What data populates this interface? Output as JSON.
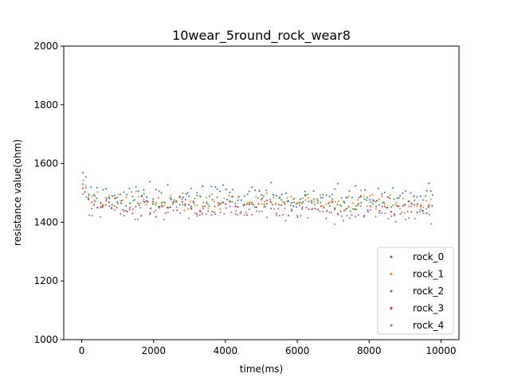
{
  "chart_data": {
    "type": "scatter",
    "title": "10wear_5round_rock_wear8",
    "xlabel": "time(ms)",
    "ylabel": "resistance value(ohm)",
    "xlim": [
      -500,
      10500
    ],
    "ylim": [
      1000,
      2000
    ],
    "x_ticks": [
      0,
      2000,
      4000,
      6000,
      8000,
      10000
    ],
    "y_ticks": [
      1000,
      1200,
      1400,
      1600,
      1800,
      2000
    ],
    "grid": false,
    "legend_position": "lower-right",
    "x_range": [
      0,
      9800
    ],
    "samples_per_series": 120,
    "series": [
      {
        "name": "rock_0",
        "color": "#1f77b4",
        "start": 1565,
        "mean": 1498,
        "spread": 18
      },
      {
        "name": "rock_1",
        "color": "#ff7f0e",
        "start": 1540,
        "mean": 1478,
        "spread": 17
      },
      {
        "name": "rock_2",
        "color": "#2ca02c",
        "start": 1530,
        "mean": 1470,
        "spread": 17
      },
      {
        "name": "rock_3",
        "color": "#d62728",
        "start": 1515,
        "mean": 1457,
        "spread": 17
      },
      {
        "name": "rock_4",
        "color": "#9467bd",
        "start": 1500,
        "mean": 1437,
        "spread": 18
      }
    ]
  }
}
